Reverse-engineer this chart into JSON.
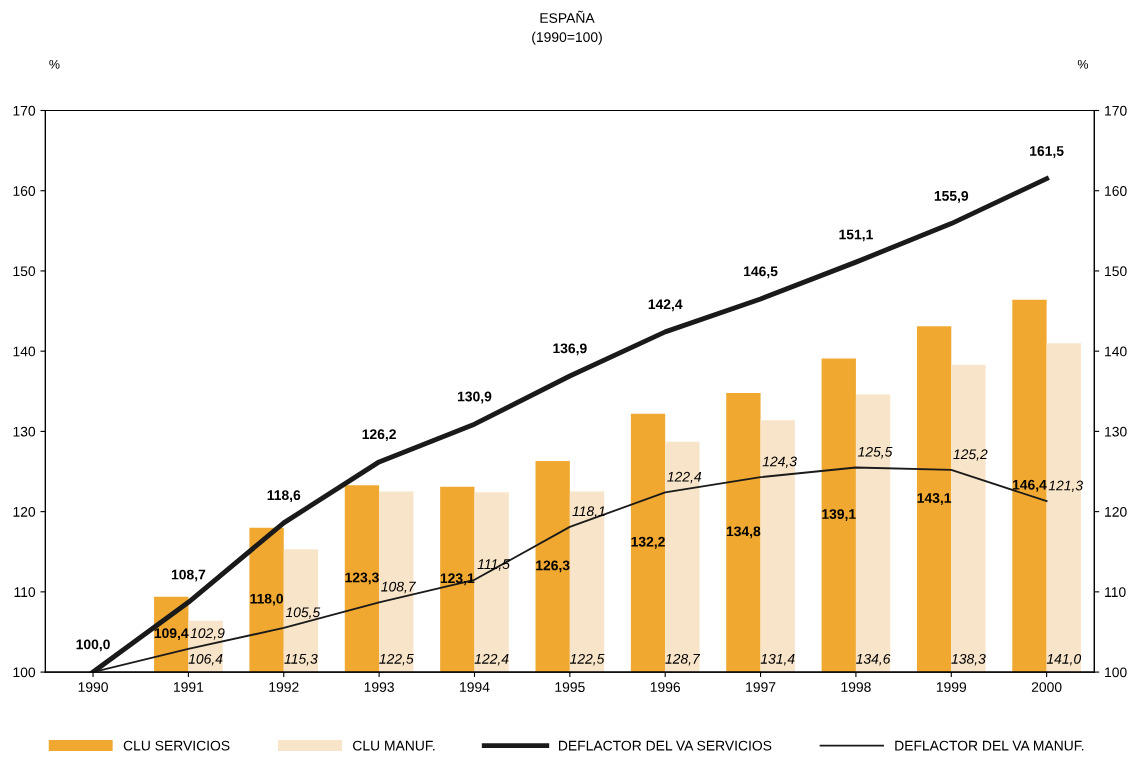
{
  "chart_data": {
    "type": "bar",
    "title": "ESPAÑA",
    "subtitle": "(1990=100)",
    "ylabel": "%",
    "y2label": "%",
    "categories": [
      "1990",
      "1991",
      "1992",
      "1993",
      "1994",
      "1995",
      "1996",
      "1997",
      "1998",
      "1999",
      "2000"
    ],
    "series": [
      {
        "name": "CLU SERVICIOS",
        "color": "#f0a830",
        "values": [
          null,
          109.4,
          118.0,
          123.3,
          123.1,
          126.3,
          132.2,
          134.8,
          139.1,
          143.1,
          146.4
        ],
        "value_labels": [
          null,
          "109,4",
          "118,0",
          "123,3",
          "123,1",
          "126,3",
          "132,2",
          "134,8",
          "139,1",
          "143,1",
          "146,4"
        ]
      },
      {
        "name": "CLU MANUF.",
        "color": "#f8e4c8",
        "values": [
          null,
          106.4,
          115.3,
          122.5,
          122.4,
          122.5,
          128.7,
          131.4,
          134.6,
          138.3,
          141.0
        ],
        "value_labels": [
          null,
          "106,4",
          "115,3",
          "122,5",
          "122,4",
          "122,5",
          "128,7",
          "131,4",
          "134,6",
          "138,3",
          "141,0"
        ]
      },
      {
        "name": "DEFLACTOR DEL VA SERVICIOS",
        "type": "line",
        "color": "#1a1a1a",
        "values": [
          100.0,
          108.7,
          118.6,
          126.2,
          130.9,
          136.9,
          142.4,
          146.5,
          151.1,
          155.9,
          161.5
        ],
        "value_labels": [
          "100,0",
          "108,7",
          "118,6",
          "126,2",
          "130,9",
          "136,9",
          "142,4",
          "146,5",
          "151,1",
          "155,9",
          "161,5"
        ]
      },
      {
        "name": "DEFLACTOR DEL VA MANUF.",
        "type": "line",
        "color": "#1a1a1a",
        "values": [
          100.0,
          102.9,
          105.5,
          108.7,
          111.5,
          118.1,
          122.4,
          124.3,
          125.5,
          125.2,
          121.3
        ],
        "value_labels": [
          null,
          "102,9",
          "105,5",
          "108,7",
          "111,5",
          "118,1",
          "122,4",
          "124,3",
          "125,5",
          "125,2",
          "121,3"
        ]
      }
    ],
    "ylim": [
      100,
      170
    ],
    "yticks": [
      100,
      110,
      120,
      130,
      140,
      150,
      160,
      170
    ],
    "y2lim": [
      100,
      170
    ],
    "y2ticks": [
      100,
      110,
      120,
      130,
      140,
      150,
      160,
      170
    ],
    "grid": false,
    "legend": "bottom"
  }
}
